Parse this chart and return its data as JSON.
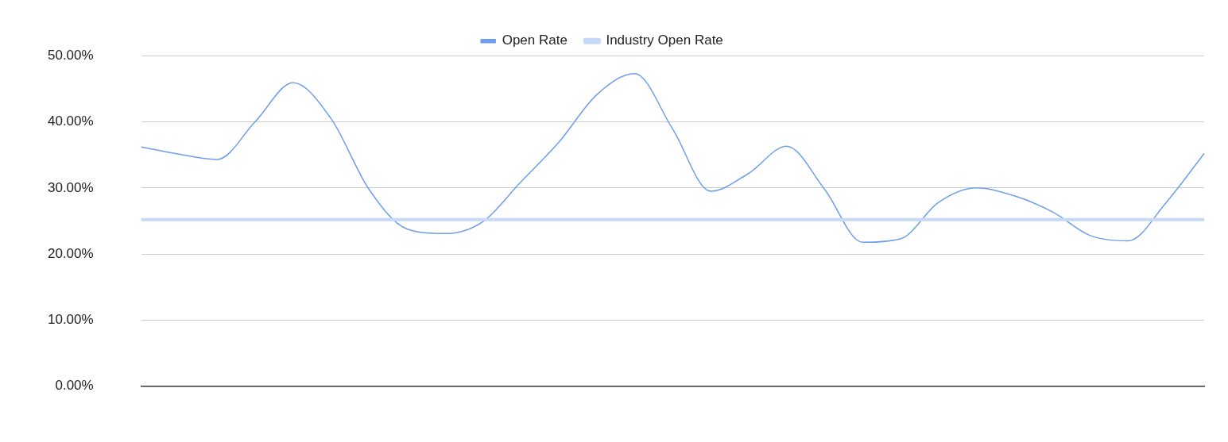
{
  "chart_data": {
    "type": "line",
    "categories": [
      null,
      null,
      null,
      null,
      null,
      null,
      null,
      null,
      null,
      null,
      null,
      null,
      null,
      null,
      null,
      null,
      null,
      null,
      null,
      null,
      null,
      null,
      null,
      null,
      null,
      null,
      null,
      null,
      null
    ],
    "series": [
      {
        "name": "Open Rate",
        "color": "#6d9eeb",
        "values": [
          36.2,
          35.1,
          34.3,
          40.0,
          45.9,
          40.5,
          29.8,
          23.8,
          23.1,
          24.9,
          30.9,
          36.9,
          44.1,
          47.3,
          38.9,
          29.5,
          32.2,
          36.3,
          29.8,
          21.8,
          22.3,
          27.8,
          30.0,
          28.8,
          26.4,
          22.8,
          22.0,
          27.8,
          35.2
        ]
      },
      {
        "name": "Industry Open Rate",
        "color": "#c6d9f7",
        "values": [
          25.2,
          25.2,
          25.2,
          25.2,
          25.2,
          25.2,
          25.2,
          25.2,
          25.2,
          25.2,
          25.2,
          25.2,
          25.2,
          25.2,
          25.2,
          25.2,
          25.2,
          25.2,
          25.2,
          25.2,
          25.2,
          25.2,
          25.2,
          25.2,
          25.2,
          25.2,
          25.2,
          25.2,
          25.2
        ]
      }
    ],
    "ylim": [
      0,
      50
    ],
    "yticks": [
      {
        "value": 0,
        "label": "0.00%"
      },
      {
        "value": 10,
        "label": "10.00%"
      },
      {
        "value": 20,
        "label": "20.00%"
      },
      {
        "value": 30,
        "label": "30.00%"
      },
      {
        "value": 40,
        "label": "40.00%"
      },
      {
        "value": 50,
        "label": "50.00%"
      }
    ],
    "grid": "y",
    "legend": "top",
    "marker": "none",
    "line_style": "solid"
  }
}
